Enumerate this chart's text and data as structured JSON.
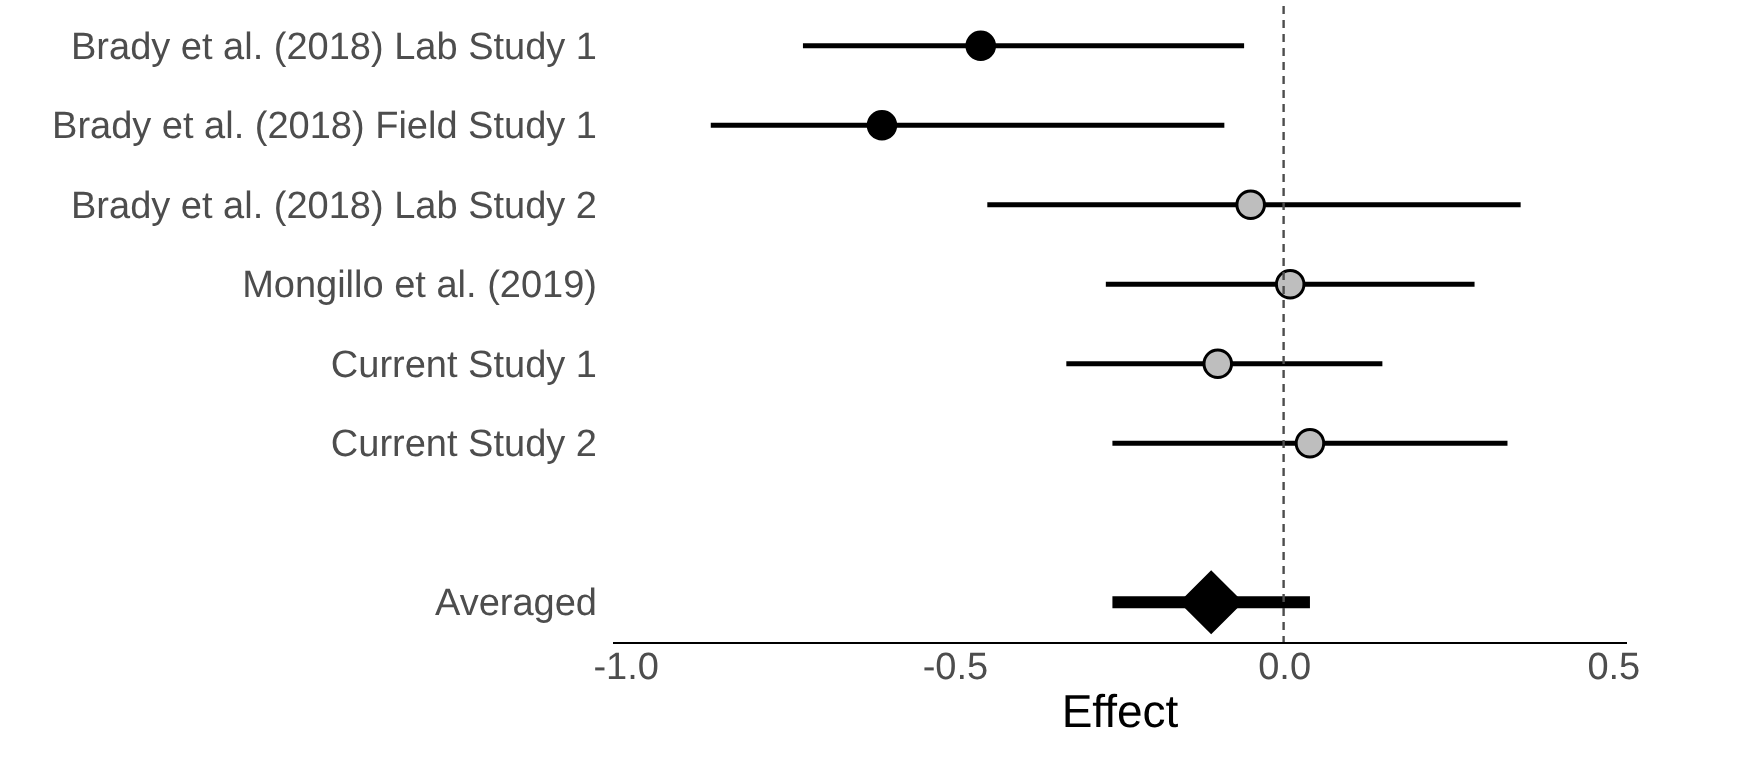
{
  "chart_data": {
    "type": "scatter",
    "orientation": "horizontal",
    "xlabel": "Effect",
    "categories": [
      "Brady et al. (2018) Lab Study 1",
      "Brady et al. (2018) Field Study 1",
      "Brady et al. (2018) Lab Study 2",
      "Mongillo et al. (2019)",
      "Current Study 1",
      "Current Study 2",
      null,
      "Averaged"
    ],
    "series": [
      {
        "color": "#000000",
        "marker": "circle",
        "values": [
          -0.46,
          -0.61,
          null,
          null,
          null,
          null,
          null,
          null
        ],
        "errors": [
          [
            -0.73,
            -0.06
          ],
          [
            -0.87,
            -0.09
          ],
          null,
          null,
          null,
          null,
          null,
          null
        ]
      },
      {
        "color": "#bebebe",
        "marker": "circle",
        "values": [
          null,
          null,
          -0.05,
          0.01,
          -0.1,
          0.04,
          null,
          null
        ],
        "errors": [
          null,
          null,
          [
            -0.45,
            0.36
          ],
          [
            -0.27,
            0.29
          ],
          [
            -0.33,
            0.15
          ],
          [
            -0.26,
            0.34
          ],
          null,
          null
        ]
      },
      {
        "color": "#000000",
        "marker": "diamond",
        "values": [
          null,
          null,
          null,
          null,
          null,
          null,
          null,
          -0.11
        ],
        "errors": [
          null,
          null,
          null,
          null,
          null,
          null,
          null,
          [
            -0.26,
            0.04
          ]
        ]
      }
    ],
    "xlim": [
      -1.02,
      0.52
    ],
    "xticks": [
      {
        "value": -1.0,
        "label": "-1.0"
      },
      {
        "value": -0.5,
        "label": "-0.5"
      },
      {
        "value": 0,
        "label": "0.0"
      },
      {
        "value": 0.5,
        "label": "0.5"
      }
    ],
    "ref_lines": [
      {
        "axis": "x",
        "value": 0,
        "color": "#4d4d4d",
        "line_style": "dashed"
      }
    ],
    "grid": false
  }
}
